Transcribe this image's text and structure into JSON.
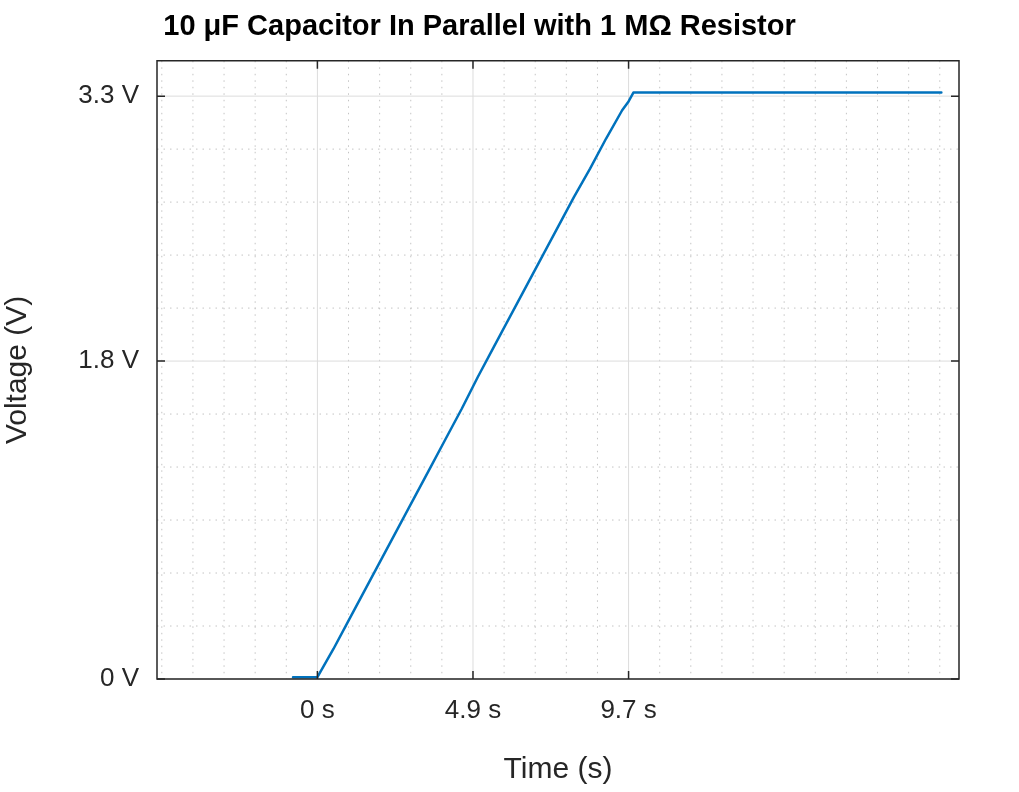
{
  "chart_data": {
    "type": "line",
    "title": "10 μF Capacitor In Parallel with 1 MΩ Resistor",
    "xlabel": "Time (s)",
    "ylabel": "Voltage (V)",
    "x": [
      -0.76,
      -0.4,
      0,
      0.5,
      1,
      1.5,
      2,
      2.5,
      3,
      3.5,
      4,
      4.5,
      5,
      5.5,
      6,
      6.5,
      7,
      7.5,
      8,
      8.5,
      9,
      9.5,
      9.7,
      9.85,
      12,
      15,
      19.45
    ],
    "series": [
      {
        "color": "#0072bd",
        "values": [
          0.01,
          0.01,
          0.01,
          0.17,
          0.34,
          0.51,
          0.68,
          0.85,
          1.02,
          1.19,
          1.36,
          1.53,
          1.71,
          1.88,
          2.05,
          2.22,
          2.39,
          2.56,
          2.73,
          2.89,
          3.06,
          3.22,
          3.27,
          3.32,
          3.32,
          3.32,
          3.32
        ]
      }
    ],
    "xlim": [
      -5,
      20
    ],
    "ylim": [
      0,
      3.5
    ],
    "xticks": [
      {
        "value": -4.85,
        "label": null
      },
      {
        "value": -3.88,
        "label": null
      },
      {
        "value": -2.91,
        "label": null
      },
      {
        "value": -1.94,
        "label": null
      },
      {
        "value": -0.97,
        "label": null
      },
      {
        "value": 0,
        "label": "0 s"
      },
      {
        "value": 0.97,
        "label": null
      },
      {
        "value": 1.94,
        "label": null
      },
      {
        "value": 2.91,
        "label": null
      },
      {
        "value": 3.88,
        "label": null
      },
      {
        "value": 4.85,
        "label": "4.9 s"
      },
      {
        "value": 5.82,
        "label": null
      },
      {
        "value": 6.79,
        "label": null
      },
      {
        "value": 7.76,
        "label": null
      },
      {
        "value": 8.73,
        "label": null
      },
      {
        "value": 9.7,
        "label": "9.7 s"
      },
      {
        "value": 10.67,
        "label": null
      },
      {
        "value": 11.64,
        "label": null
      },
      {
        "value": 12.61,
        "label": null
      },
      {
        "value": 13.58,
        "label": null
      },
      {
        "value": 14.55,
        "label": null
      },
      {
        "value": 15.52,
        "label": null
      },
      {
        "value": 16.49,
        "label": null
      },
      {
        "value": 17.46,
        "label": null
      },
      {
        "value": 18.43,
        "label": null
      },
      {
        "value": 19.4,
        "label": null
      }
    ],
    "yticks": [
      {
        "value": 0,
        "label": "0 V"
      },
      {
        "value": 0.3,
        "label": null
      },
      {
        "value": 0.6,
        "label": null
      },
      {
        "value": 0.9,
        "label": null
      },
      {
        "value": 1.2,
        "label": null
      },
      {
        "value": 1.5,
        "label": null
      },
      {
        "value": 1.8,
        "label": "1.8 V"
      },
      {
        "value": 2.1,
        "label": null
      },
      {
        "value": 2.4,
        "label": null
      },
      {
        "value": 2.7,
        "label": null
      },
      {
        "value": 3.0,
        "label": null
      },
      {
        "value": 3.3,
        "label": "3.3 V"
      }
    ],
    "grid": true,
    "marker": "none",
    "line_style": "solid",
    "legend": false
  }
}
